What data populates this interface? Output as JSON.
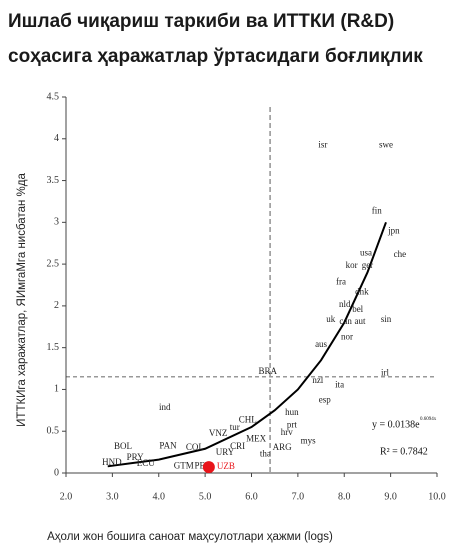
{
  "chart_data": {
    "type": "scatter",
    "title": [
      "Ишлаб чиқариш таркиби ва ИТТКИ (R&D)",
      "соҳасига ҳаражатлар ўртасидаги боғлиқлик"
    ],
    "x_label": "Аҳоли жон бошига саноат маҳсулотлари ҳажми (logs)",
    "y_label": "ИТТКИга харажатлар, ЯИмгаМга нисбатан %да",
    "xlim": [
      2,
      10
    ],
    "ylim": [
      0,
      4.5
    ],
    "xticks": [
      {
        "value": 2,
        "label": "2.0"
      },
      {
        "value": 3,
        "label": "3.0"
      },
      {
        "value": 4,
        "label": "4.0"
      },
      {
        "value": 5,
        "label": "5.0"
      },
      {
        "value": 6,
        "label": "6.0"
      },
      {
        "value": 7,
        "label": "7.0"
      },
      {
        "value": 8,
        "label": "8.0"
      },
      {
        "value": 9,
        "label": "9.0"
      },
      {
        "value": 10,
        "label": "10.0"
      }
    ],
    "yticks": [
      0,
      0.5,
      1,
      1.5,
      2,
      2.5,
      3,
      3.5,
      4,
      4.5
    ],
    "series": [
      {
        "color": "#222222",
        "labels": [
          "isr",
          "swe",
          "fin",
          "jpn",
          "che",
          "usa",
          "kor",
          "ger",
          "fra",
          "dnk",
          "nld",
          "bel",
          "uk",
          "can",
          "aut",
          "sin",
          "nor",
          "aus",
          "irl",
          "nzl",
          "ita",
          "esp",
          "BRA",
          "ind",
          "hun",
          "prt",
          "hrv",
          "mys",
          "CHL",
          "tur",
          "VNZ",
          "MEX",
          "CRI",
          "ARG",
          "URY",
          "tha",
          "PAN",
          "COL",
          "BOL",
          "PRY",
          "HND",
          "ECU",
          "GTM",
          "PER"
        ],
        "x": [
          7.54,
          8.9,
          8.7,
          9.07,
          9.2,
          8.47,
          8.16,
          8.5,
          7.93,
          8.38,
          8.01,
          8.29,
          7.71,
          8.03,
          8.34,
          8.9,
          8.06,
          7.5,
          8.88,
          7.43,
          7.9,
          7.58,
          6.35,
          4.13,
          6.87,
          6.87,
          6.76,
          7.22,
          5.92,
          5.64,
          5.28,
          6.1,
          5.7,
          6.66,
          5.43,
          6.3,
          4.2,
          4.78,
          3.23,
          3.49,
          2.99,
          3.72,
          4.54,
          4.95
        ],
        "values": [
          3.92,
          3.92,
          3.13,
          2.89,
          2.61,
          2.63,
          2.48,
          2.48,
          2.28,
          2.16,
          2.01,
          1.95,
          1.83,
          1.81,
          1.81,
          1.83,
          1.62,
          1.53,
          1.19,
          1.1,
          1.05,
          0.87,
          1.21,
          0.78,
          0.72,
          0.57,
          0.48,
          0.38,
          0.63,
          0.54,
          0.47,
          0.4,
          0.31,
          0.3,
          0.24,
          0.22,
          0.32,
          0.3,
          0.31,
          0.18,
          0.12,
          0.11,
          0.08,
          0.08
        ]
      },
      {
        "color": "#e8141a",
        "labels": [
          "UZB"
        ],
        "x": [
          5.08
        ],
        "values": [
          0.07
        ]
      }
    ],
    "fit": {
      "color": "#000000",
      "x": [
        2.9,
        4,
        5,
        6,
        6.5,
        7,
        7.5,
        8,
        8.5,
        8.9
      ],
      "values": [
        0.08,
        0.16,
        0.29,
        0.55,
        0.75,
        1.0,
        1.35,
        1.8,
        2.4,
        3.0
      ]
    },
    "reference_lines": {
      "x": 6.4,
      "y": 1.15
    },
    "annotations": [
      "y = 0.0138e",
      "0.6094x",
      "R² = 0.7842"
    ]
  }
}
